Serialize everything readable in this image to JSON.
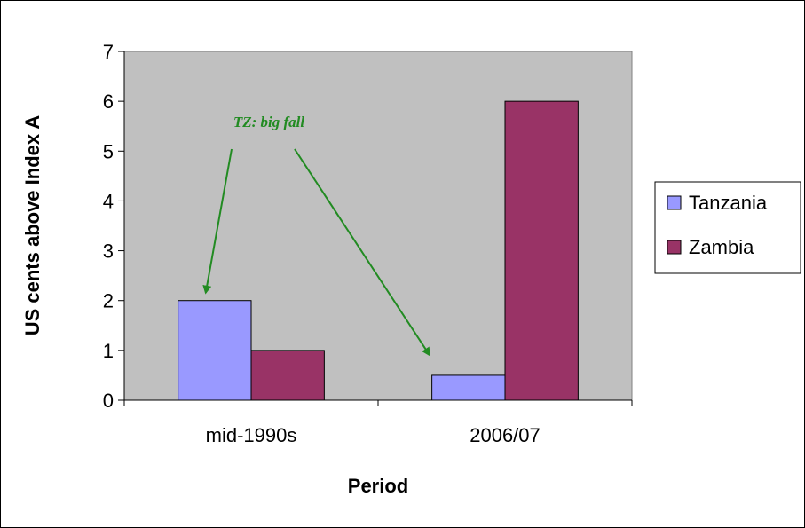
{
  "chart_data": {
    "type": "bar",
    "categories": [
      "mid-1990s",
      "2006/07"
    ],
    "series": [
      {
        "name": "Tanzania",
        "values": [
          2,
          0.5
        ],
        "color": "#9999ff"
      },
      {
        "name": "Zambia",
        "values": [
          1,
          6
        ],
        "color": "#993366"
      }
    ],
    "xlabel": "Period",
    "ylabel": "US cents above Index A",
    "ylim": [
      0,
      7
    ],
    "yticks": [
      0,
      1,
      2,
      3,
      4,
      5,
      6,
      7
    ],
    "grid": false,
    "plot_background": "#c0c0c0",
    "legend_position": "right",
    "annotation": {
      "text": "TZ: big fall",
      "color": "#228b22",
      "targets": [
        {
          "category": "mid-1990s",
          "series": "Tanzania"
        },
        {
          "category": "2006/07",
          "series": "Tanzania"
        }
      ]
    }
  }
}
